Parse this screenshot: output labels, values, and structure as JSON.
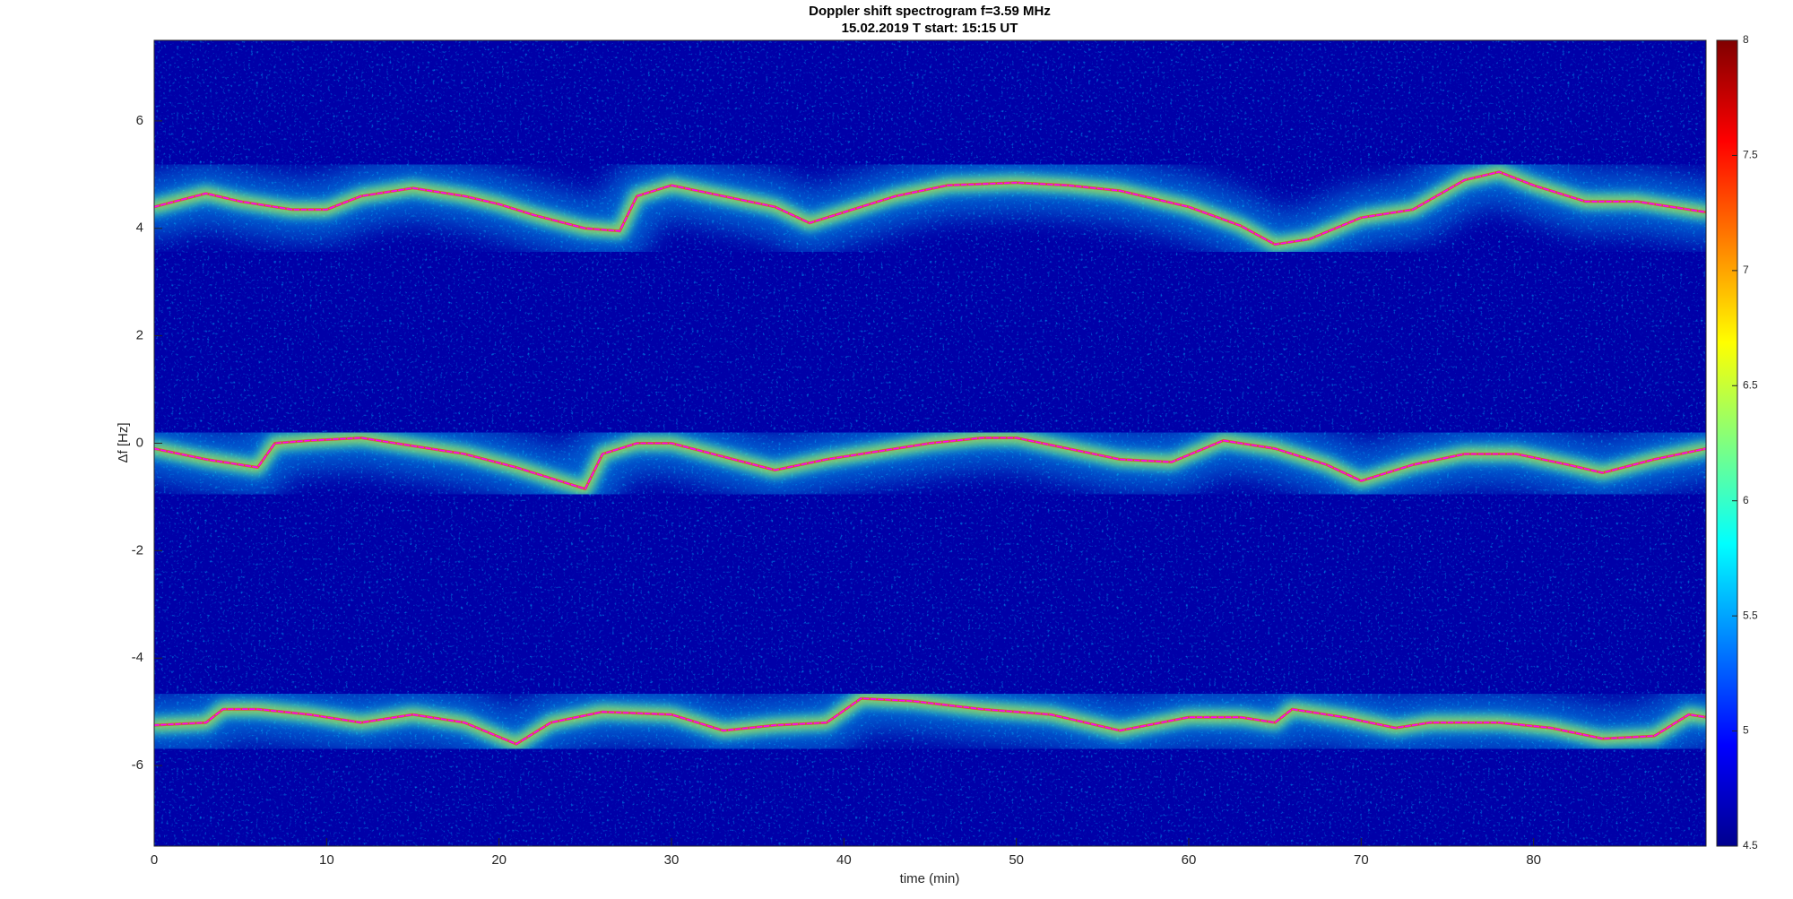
{
  "chart_data": {
    "type": "spectrogram",
    "title": "Doppler shift spectrogram f=3.59 MHz",
    "subtitle": "15.02.2019   T start: 15:15 UT",
    "xlabel": "time (min)",
    "ylabel": "Δf [Hz]",
    "xlim": [
      0,
      90
    ],
    "xticks": [
      0,
      10,
      20,
      30,
      40,
      50,
      60,
      70,
      80
    ],
    "ylim": [
      -7.5,
      7.5
    ],
    "yticks": [
      -6,
      -4,
      -2,
      0,
      2,
      4,
      6
    ],
    "colormap": "jet",
    "clim": [
      4.5,
      8
    ],
    "cticks": [
      4.5,
      5,
      5.5,
      6,
      6.5,
      7,
      7.5,
      8
    ],
    "series": [
      {
        "color": "#ff00ff",
        "x": [
          0,
          3,
          5,
          8,
          10,
          12,
          15,
          18,
          20,
          22,
          25,
          27,
          28,
          30,
          33,
          36,
          38,
          40,
          43,
          46,
          50,
          53,
          56,
          60,
          63,
          65,
          67,
          70,
          73,
          76,
          78,
          80,
          83,
          86,
          90
        ],
        "values": [
          4.4,
          4.65,
          4.5,
          4.35,
          4.35,
          4.6,
          4.75,
          4.6,
          4.45,
          4.25,
          4.0,
          3.95,
          4.6,
          4.8,
          4.6,
          4.4,
          4.1,
          4.3,
          4.6,
          4.8,
          4.85,
          4.8,
          4.7,
          4.4,
          4.05,
          3.7,
          3.8,
          4.2,
          4.35,
          4.9,
          5.05,
          4.8,
          4.5,
          4.5,
          4.3
        ]
      },
      {
        "color": "#ff00ff",
        "x": [
          0,
          3,
          6,
          7,
          9,
          12,
          15,
          18,
          21,
          24,
          25,
          26,
          28,
          30,
          33,
          36,
          39,
          42,
          45,
          48,
          50,
          53,
          56,
          59,
          62,
          65,
          68,
          70,
          73,
          76,
          79,
          82,
          84,
          87,
          90
        ],
        "values": [
          -0.1,
          -0.3,
          -0.45,
          0.0,
          0.05,
          0.1,
          -0.05,
          -0.2,
          -0.45,
          -0.75,
          -0.85,
          -0.2,
          0.0,
          0.0,
          -0.25,
          -0.5,
          -0.3,
          -0.15,
          0.0,
          0.1,
          0.1,
          -0.1,
          -0.3,
          -0.35,
          0.05,
          -0.1,
          -0.4,
          -0.7,
          -0.4,
          -0.2,
          -0.2,
          -0.4,
          -0.55,
          -0.3,
          -0.1
        ]
      },
      {
        "color": "#ff00ff",
        "x": [
          0,
          3,
          4,
          6,
          9,
          12,
          15,
          18,
          21,
          23,
          26,
          30,
          33,
          36,
          39,
          41,
          44,
          48,
          52,
          56,
          60,
          63,
          65,
          66,
          69,
          72,
          74,
          78,
          81,
          84,
          87,
          89,
          90
        ],
        "values": [
          -5.25,
          -5.2,
          -4.95,
          -4.95,
          -5.05,
          -5.2,
          -5.05,
          -5.2,
          -5.6,
          -5.2,
          -5.0,
          -5.05,
          -5.35,
          -5.25,
          -5.2,
          -4.75,
          -4.8,
          -4.95,
          -5.05,
          -5.35,
          -5.1,
          -5.1,
          -5.2,
          -4.95,
          -5.1,
          -5.3,
          -5.2,
          -5.2,
          -5.3,
          -5.5,
          -5.45,
          -5.05,
          -5.1
        ]
      }
    ]
  }
}
